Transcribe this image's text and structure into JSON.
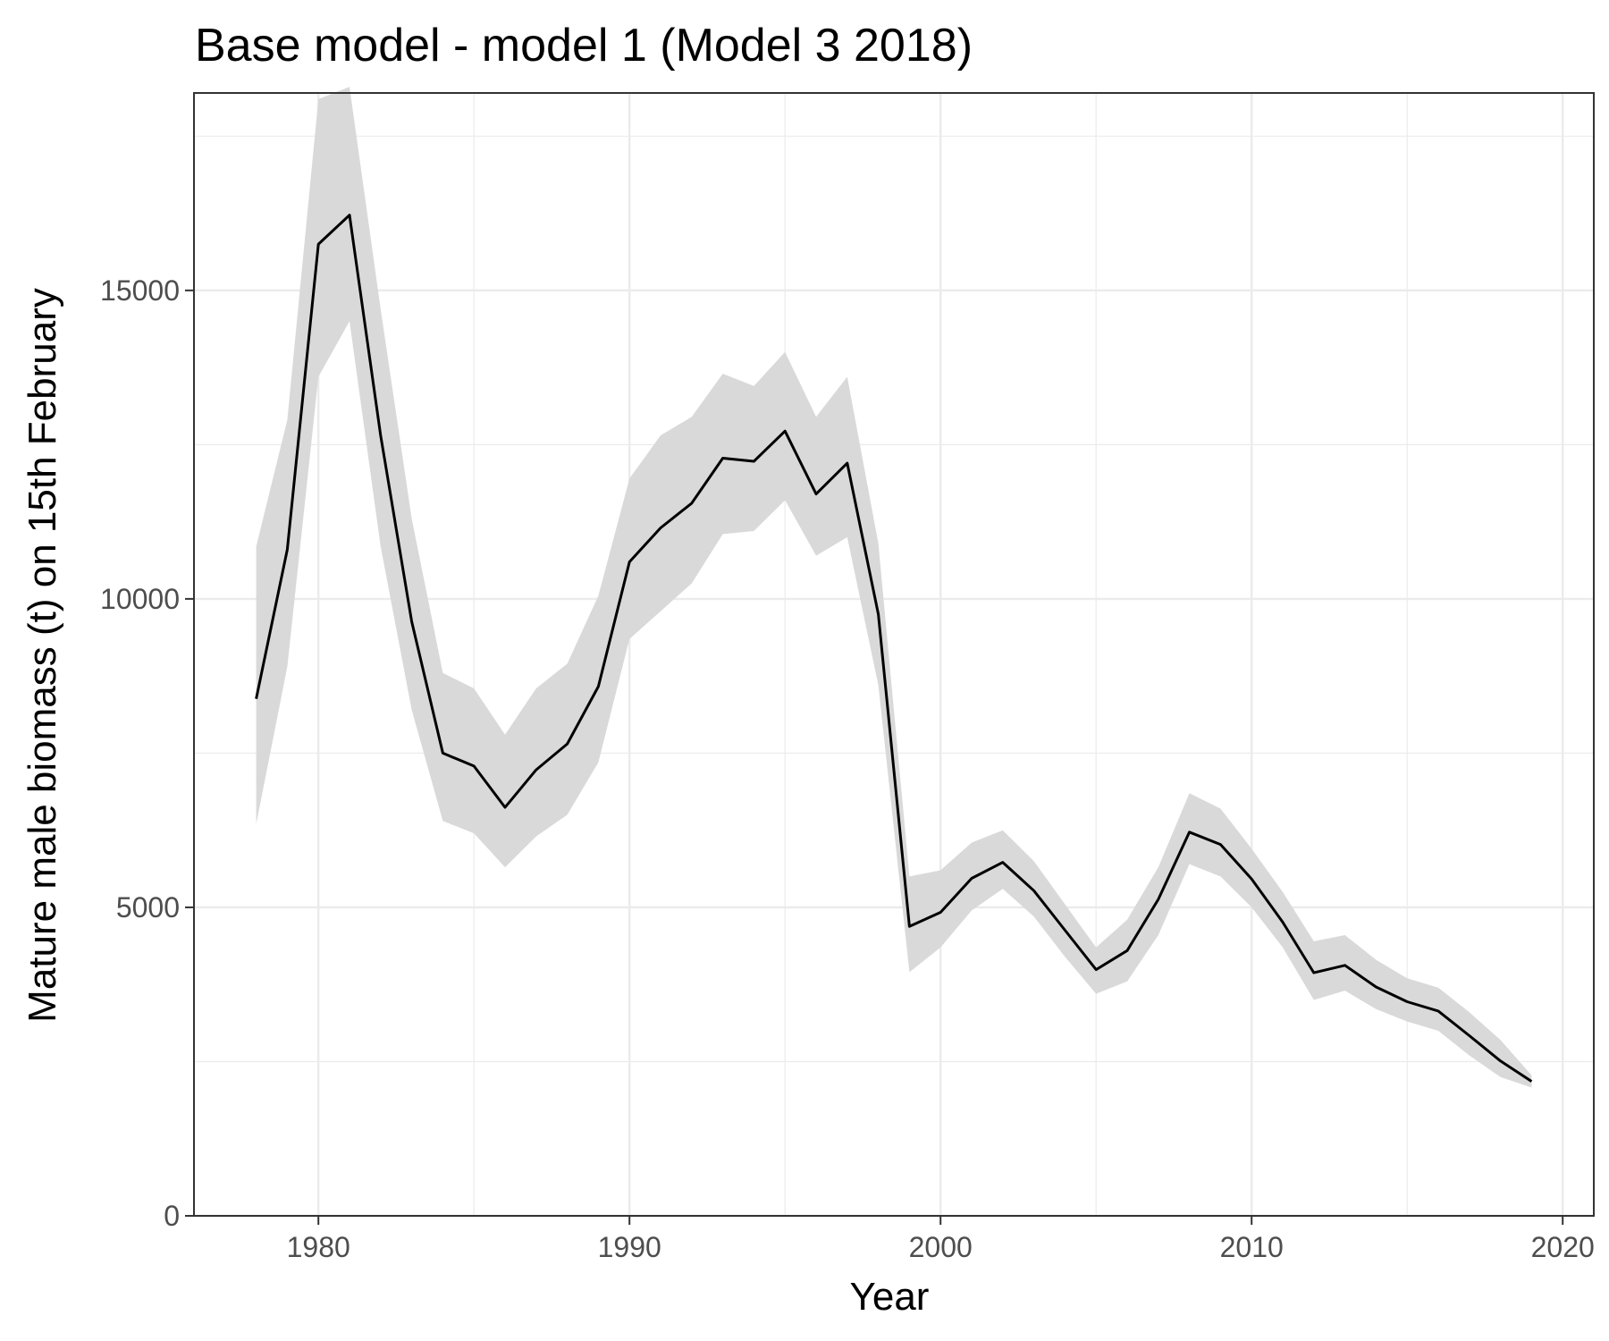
{
  "chart_data": {
    "type": "line",
    "title": "Base model - model 1 (Model 3 2018)",
    "xlabel": "Year",
    "ylabel": "Mature male biomass (t) on 15th February",
    "xlim": [
      1976,
      2021
    ],
    "ylim": [
      0,
      18200
    ],
    "x_ticks": [
      1980,
      1990,
      2000,
      2010,
      2020
    ],
    "y_ticks": [
      0,
      5000,
      10000,
      15000
    ],
    "grid": true,
    "legend": "none",
    "colors": {
      "line": "#000000",
      "band": "#d9d9d9",
      "grid": "#ebebeb",
      "panel_border": "#333333"
    },
    "series": [
      {
        "x": [
          1978,
          1979,
          1980,
          1981,
          1982,
          1983,
          1984,
          1985,
          1986,
          1987,
          1988,
          1989,
          1990,
          1991,
          1992,
          1993,
          1994,
          1995,
          1996,
          1997,
          1998,
          1999,
          2000,
          2001,
          2002,
          2003,
          2004,
          2005,
          2006,
          2007,
          2008,
          2009,
          2010,
          2011,
          2012,
          2013,
          2014,
          2015,
          2016,
          2017,
          2018,
          2019
        ],
        "values": [
          8380,
          10800,
          15750,
          16220,
          12650,
          9630,
          7500,
          7290,
          6620,
          7230,
          7650,
          8580,
          10600,
          11150,
          11550,
          12280,
          12230,
          12720,
          11700,
          12200,
          9750,
          4690,
          4920,
          5470,
          5730,
          5270,
          4630,
          3990,
          4300,
          5130,
          6220,
          6020,
          5460,
          4760,
          3940,
          4060,
          3710,
          3470,
          3320,
          2920,
          2510,
          2180
        ],
        "upper": [
          10850,
          12900,
          18100,
          18300,
          14700,
          11300,
          8800,
          8550,
          7800,
          8550,
          8950,
          10050,
          11950,
          12650,
          12950,
          13650,
          13450,
          14000,
          12950,
          13600,
          10900,
          5500,
          5600,
          6050,
          6250,
          5750,
          5050,
          4350,
          4800,
          5650,
          6850,
          6600,
          5950,
          5250,
          4450,
          4550,
          4150,
          3850,
          3700,
          3300,
          2850,
          2280
        ],
        "lower": [
          6350,
          8900,
          13600,
          14500,
          10850,
          8200,
          6400,
          6200,
          5650,
          6150,
          6500,
          7350,
          9350,
          9800,
          10250,
          11050,
          11100,
          11600,
          10700,
          11000,
          8600,
          3950,
          4350,
          4950,
          5300,
          4850,
          4200,
          3600,
          3800,
          4550,
          5700,
          5500,
          5000,
          4350,
          3500,
          3650,
          3350,
          3150,
          3000,
          2600,
          2250,
          2080
        ]
      }
    ]
  }
}
